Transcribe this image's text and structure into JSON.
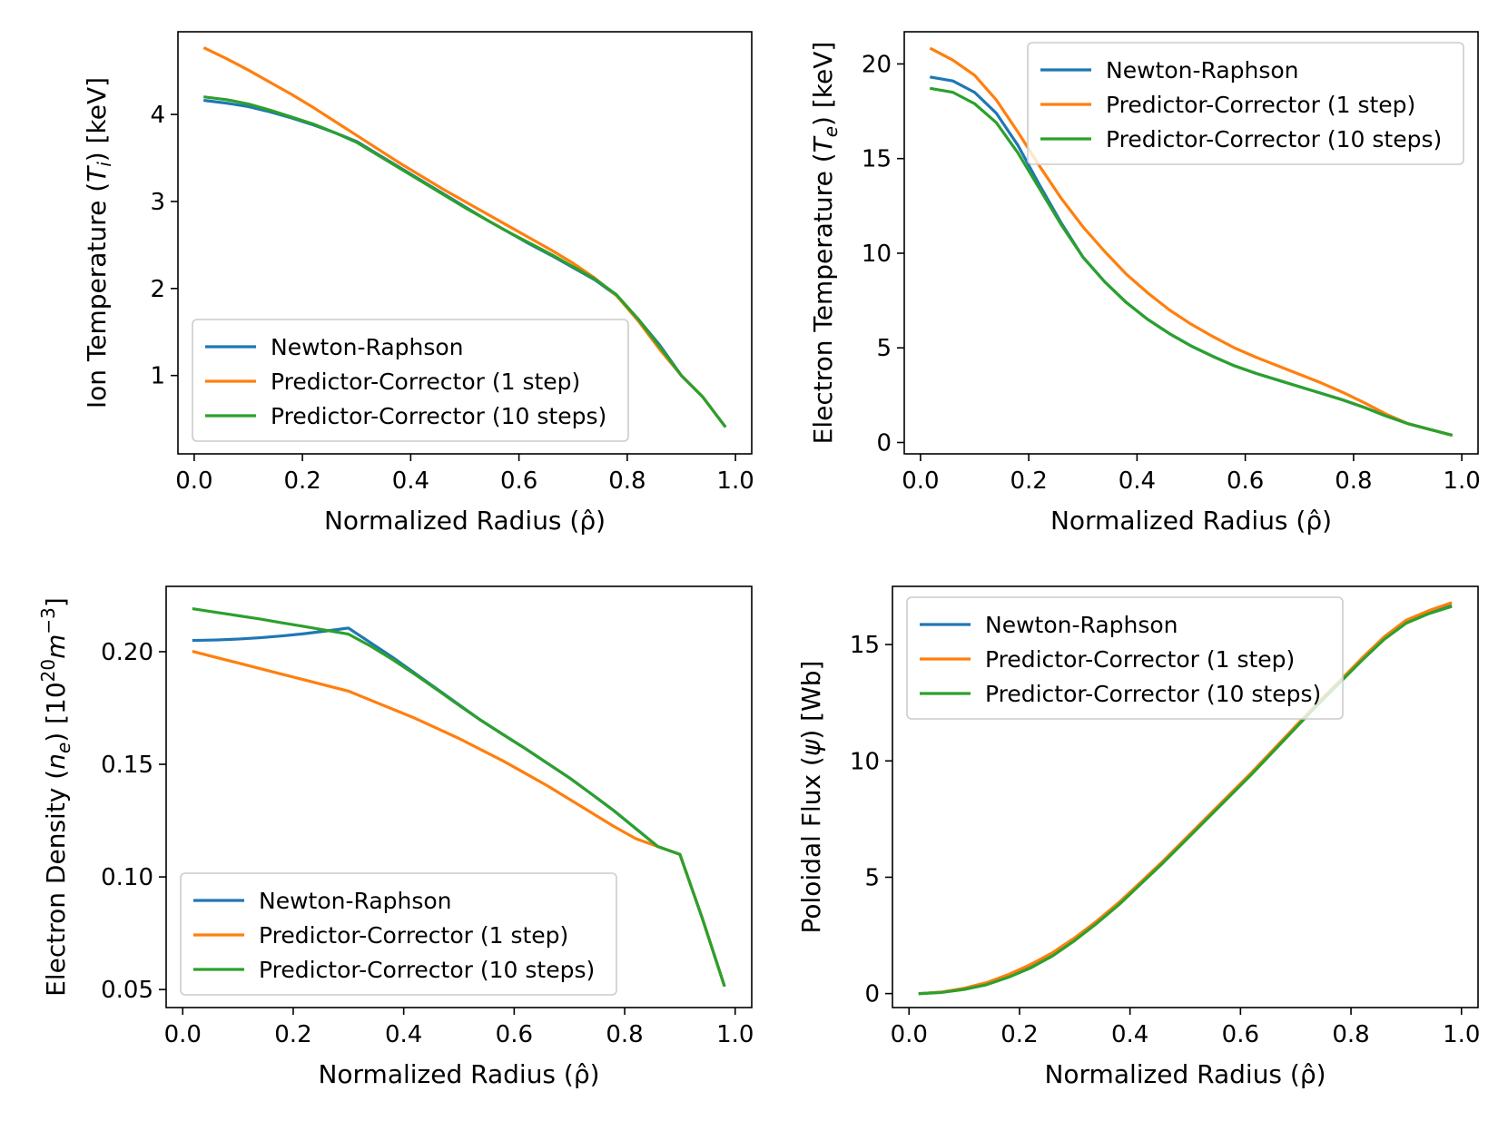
{
  "colors": {
    "newton_raphson": "#1f77b4",
    "predictor_corrector_1": "#ff7f0e",
    "predictor_corrector_10": "#2ca02c"
  },
  "chart_data": [
    {
      "type": "line",
      "title": "",
      "xlabel": "Normalized Radius (ρ̂)",
      "ylabel": "Ion Temperature (T_i) [keV]",
      "ylabel_parts": [
        "Ion Temperature (",
        "T",
        "i",
        ") [keV]"
      ],
      "xlim": [
        -0.03,
        1.03
      ],
      "ylim": [
        0.1,
        4.95
      ],
      "xticks": [
        0.0,
        0.2,
        0.4,
        0.6,
        0.8,
        1.0
      ],
      "xtick_labels": [
        "0.0",
        "0.2",
        "0.4",
        "0.6",
        "0.8",
        "1.0"
      ],
      "yticks": [
        1,
        2,
        3,
        4
      ],
      "ytick_labels": [
        "1",
        "2",
        "3",
        "4"
      ],
      "legend_position": "lower-left",
      "grid": false,
      "series": [
        {
          "name": "Newton-Raphson",
          "color_key": "newton_raphson",
          "x": [
            0.02,
            0.06,
            0.1,
            0.14,
            0.18,
            0.22,
            0.26,
            0.3,
            0.34,
            0.38,
            0.42,
            0.46,
            0.5,
            0.54,
            0.58,
            0.62,
            0.66,
            0.7,
            0.74,
            0.78,
            0.82,
            0.86,
            0.9,
            0.94,
            0.98
          ],
          "y": [
            4.16,
            4.13,
            4.09,
            4.03,
            3.96,
            3.88,
            3.79,
            3.69,
            3.54,
            3.39,
            3.24,
            3.09,
            2.94,
            2.79,
            2.65,
            2.51,
            2.38,
            2.24,
            2.1,
            1.92,
            1.65,
            1.35,
            1.0,
            0.75,
            0.42
          ]
        },
        {
          "name": "Predictor-Corrector (1 step)",
          "color_key": "predictor_corrector_1",
          "x": [
            0.02,
            0.06,
            0.1,
            0.14,
            0.18,
            0.22,
            0.26,
            0.3,
            0.34,
            0.38,
            0.42,
            0.46,
            0.5,
            0.54,
            0.58,
            0.62,
            0.66,
            0.7,
            0.74,
            0.78,
            0.82,
            0.86,
            0.9,
            0.94,
            0.98
          ],
          "y": [
            4.76,
            4.64,
            4.51,
            4.37,
            4.23,
            4.08,
            3.92,
            3.76,
            3.6,
            3.44,
            3.29,
            3.14,
            3.0,
            2.86,
            2.72,
            2.58,
            2.44,
            2.29,
            2.12,
            1.92,
            1.63,
            1.3,
            1.0,
            0.75,
            0.42
          ]
        },
        {
          "name": "Predictor-Corrector (10 steps)",
          "color_key": "predictor_corrector_10",
          "x": [
            0.02,
            0.06,
            0.1,
            0.14,
            0.18,
            0.22,
            0.26,
            0.3,
            0.34,
            0.38,
            0.42,
            0.46,
            0.5,
            0.54,
            0.58,
            0.62,
            0.66,
            0.7,
            0.74,
            0.78,
            0.82,
            0.86,
            0.9,
            0.94,
            0.98
          ],
          "y": [
            4.2,
            4.17,
            4.12,
            4.05,
            3.97,
            3.89,
            3.79,
            3.68,
            3.53,
            3.38,
            3.23,
            3.08,
            2.93,
            2.79,
            2.65,
            2.52,
            2.39,
            2.25,
            2.11,
            1.93,
            1.65,
            1.33,
            1.0,
            0.75,
            0.42
          ]
        }
      ]
    },
    {
      "type": "line",
      "title": "",
      "xlabel": "Normalized Radius (ρ̂)",
      "ylabel": "Electron Temperature (T_e) [keV]",
      "ylabel_parts": [
        "Electron Temperature (",
        "T",
        "e",
        ") [keV]"
      ],
      "xlim": [
        -0.03,
        1.03
      ],
      "ylim": [
        -0.6,
        21.7
      ],
      "xticks": [
        0.0,
        0.2,
        0.4,
        0.6,
        0.8,
        1.0
      ],
      "xtick_labels": [
        "0.0",
        "0.2",
        "0.4",
        "0.6",
        "0.8",
        "1.0"
      ],
      "yticks": [
        0,
        5,
        10,
        15,
        20
      ],
      "ytick_labels": [
        "0",
        "5",
        "10",
        "15",
        "20"
      ],
      "legend_position": "upper-right",
      "grid": false,
      "series": [
        {
          "name": "Newton-Raphson",
          "color_key": "newton_raphson",
          "x": [
            0.02,
            0.06,
            0.1,
            0.14,
            0.18,
            0.22,
            0.26,
            0.3,
            0.34,
            0.38,
            0.42,
            0.46,
            0.5,
            0.54,
            0.58,
            0.62,
            0.66,
            0.7,
            0.74,
            0.78,
            0.82,
            0.86,
            0.9,
            0.94,
            0.98
          ],
          "y": [
            19.3,
            19.1,
            18.5,
            17.4,
            15.7,
            13.6,
            11.6,
            9.8,
            8.5,
            7.4,
            6.5,
            5.75,
            5.1,
            4.55,
            4.05,
            3.65,
            3.3,
            2.95,
            2.6,
            2.25,
            1.85,
            1.4,
            1.0,
            0.7,
            0.4
          ]
        },
        {
          "name": "Predictor-Corrector (1 step)",
          "color_key": "predictor_corrector_1",
          "x": [
            0.02,
            0.06,
            0.1,
            0.14,
            0.18,
            0.22,
            0.26,
            0.3,
            0.34,
            0.38,
            0.42,
            0.46,
            0.5,
            0.54,
            0.58,
            0.62,
            0.66,
            0.7,
            0.74,
            0.78,
            0.82,
            0.86,
            0.9,
            0.94,
            0.98
          ],
          "y": [
            20.8,
            20.2,
            19.4,
            18.1,
            16.4,
            14.6,
            12.9,
            11.4,
            10.1,
            8.9,
            7.9,
            7.0,
            6.25,
            5.6,
            5.0,
            4.5,
            4.05,
            3.6,
            3.15,
            2.65,
            2.1,
            1.5,
            1.0,
            0.7,
            0.4
          ]
        },
        {
          "name": "Predictor-Corrector (10 steps)",
          "color_key": "predictor_corrector_10",
          "x": [
            0.02,
            0.06,
            0.1,
            0.14,
            0.18,
            0.22,
            0.26,
            0.3,
            0.34,
            0.38,
            0.42,
            0.46,
            0.5,
            0.54,
            0.58,
            0.62,
            0.66,
            0.7,
            0.74,
            0.78,
            0.82,
            0.86,
            0.9,
            0.94,
            0.98
          ],
          "y": [
            18.7,
            18.5,
            17.9,
            16.9,
            15.3,
            13.4,
            11.5,
            9.8,
            8.5,
            7.4,
            6.5,
            5.75,
            5.1,
            4.55,
            4.05,
            3.65,
            3.3,
            2.95,
            2.6,
            2.25,
            1.85,
            1.4,
            1.0,
            0.7,
            0.4
          ]
        }
      ]
    },
    {
      "type": "line",
      "title": "",
      "xlabel": "Normalized Radius (ρ̂)",
      "ylabel": "Electron Density (n_e) [10^20 m^-3]",
      "ylabel_parts": [
        "Electron Density (",
        "n",
        "e",
        ") [10",
        "20",
        "m",
        "−3",
        "]"
      ],
      "xlim": [
        -0.03,
        1.03
      ],
      "ylim": [
        0.042,
        0.229
      ],
      "xticks": [
        0.0,
        0.2,
        0.4,
        0.6,
        0.8,
        1.0
      ],
      "xtick_labels": [
        "0.0",
        "0.2",
        "0.4",
        "0.6",
        "0.8",
        "1.0"
      ],
      "yticks": [
        0.05,
        0.1,
        0.15,
        0.2
      ],
      "ytick_labels": [
        "0.05",
        "0.10",
        "0.15",
        "0.20"
      ],
      "legend_position": "lower-left",
      "grid": false,
      "series": [
        {
          "name": "Newton-Raphson",
          "color_key": "newton_raphson",
          "x": [
            0.02,
            0.06,
            0.1,
            0.14,
            0.18,
            0.22,
            0.26,
            0.3,
            0.34,
            0.38,
            0.42,
            0.46,
            0.5,
            0.54,
            0.58,
            0.62,
            0.66,
            0.7,
            0.74,
            0.78,
            0.82,
            0.86,
            0.9,
            0.94,
            0.98
          ],
          "y": [
            0.205,
            0.2052,
            0.2056,
            0.2062,
            0.207,
            0.208,
            0.2092,
            0.2105,
            0.204,
            0.1975,
            0.1905,
            0.1835,
            0.1765,
            0.1695,
            0.1632,
            0.157,
            0.1505,
            0.144,
            0.1368,
            0.1295,
            0.1215,
            0.1135,
            0.11,
            0.082,
            0.052
          ]
        },
        {
          "name": "Predictor-Corrector (1 step)",
          "color_key": "predictor_corrector_1",
          "x": [
            0.02,
            0.06,
            0.1,
            0.14,
            0.18,
            0.22,
            0.26,
            0.3,
            0.34,
            0.38,
            0.42,
            0.46,
            0.5,
            0.54,
            0.58,
            0.62,
            0.66,
            0.7,
            0.74,
            0.78,
            0.82,
            0.86,
            0.9,
            0.94,
            0.98
          ],
          "y": [
            0.2,
            0.1975,
            0.195,
            0.1925,
            0.19,
            0.1875,
            0.185,
            0.1825,
            0.1785,
            0.1745,
            0.1705,
            0.166,
            0.1615,
            0.1565,
            0.1515,
            0.146,
            0.1405,
            0.1345,
            0.1285,
            0.1225,
            0.117,
            0.1135,
            0.11,
            0.082,
            0.052
          ]
        },
        {
          "name": "Predictor-Corrector (10 steps)",
          "color_key": "predictor_corrector_10",
          "x": [
            0.02,
            0.06,
            0.1,
            0.14,
            0.18,
            0.22,
            0.26,
            0.3,
            0.34,
            0.38,
            0.42,
            0.46,
            0.5,
            0.54,
            0.58,
            0.62,
            0.66,
            0.7,
            0.74,
            0.78,
            0.82,
            0.86,
            0.9,
            0.94,
            0.98
          ],
          "y": [
            0.219,
            0.2175,
            0.216,
            0.2145,
            0.2128,
            0.2112,
            0.2095,
            0.2078,
            0.2025,
            0.1965,
            0.19,
            0.1832,
            0.1762,
            0.1695,
            0.1632,
            0.157,
            0.1505,
            0.144,
            0.1368,
            0.1295,
            0.1215,
            0.1135,
            0.11,
            0.082,
            0.052
          ]
        }
      ]
    },
    {
      "type": "line",
      "title": "",
      "xlabel": "Normalized Radius (ρ̂)",
      "ylabel": "Poloidal Flux (ψ) [Wb]",
      "ylabel_parts": [
        "Poloidal Flux (",
        "ψ",
        "",
        ") [Wb]"
      ],
      "xlim": [
        -0.03,
        1.03
      ],
      "ylim": [
        -0.6,
        17.5
      ],
      "xticks": [
        0.0,
        0.2,
        0.4,
        0.6,
        0.8,
        1.0
      ],
      "xtick_labels": [
        "0.0",
        "0.2",
        "0.4",
        "0.6",
        "0.8",
        "1.0"
      ],
      "yticks": [
        0,
        5,
        10,
        15
      ],
      "ytick_labels": [
        "0",
        "5",
        "10",
        "15"
      ],
      "legend_position": "upper-left",
      "grid": false,
      "series": [
        {
          "name": "Newton-Raphson",
          "color_key": "newton_raphson",
          "x": [
            0.02,
            0.06,
            0.1,
            0.14,
            0.18,
            0.22,
            0.26,
            0.3,
            0.34,
            0.38,
            0.42,
            0.46,
            0.5,
            0.54,
            0.58,
            0.62,
            0.66,
            0.7,
            0.74,
            0.78,
            0.82,
            0.86,
            0.9,
            0.94,
            0.98
          ],
          "y": [
            0.0,
            0.06,
            0.2,
            0.42,
            0.75,
            1.15,
            1.65,
            2.3,
            3.05,
            3.85,
            4.75,
            5.65,
            6.6,
            7.55,
            8.5,
            9.45,
            10.45,
            11.45,
            12.45,
            13.4,
            14.35,
            15.25,
            15.95,
            16.35,
            16.65
          ]
        },
        {
          "name": "Predictor-Corrector (1 step)",
          "color_key": "predictor_corrector_1",
          "x": [
            0.02,
            0.06,
            0.1,
            0.14,
            0.18,
            0.22,
            0.26,
            0.3,
            0.34,
            0.38,
            0.42,
            0.46,
            0.5,
            0.54,
            0.58,
            0.62,
            0.66,
            0.7,
            0.74,
            0.78,
            0.82,
            0.86,
            0.9,
            0.94,
            0.98
          ],
          "y": [
            0.0,
            0.07,
            0.23,
            0.47,
            0.82,
            1.25,
            1.76,
            2.4,
            3.12,
            3.92,
            4.8,
            5.7,
            6.65,
            7.6,
            8.55,
            9.5,
            10.5,
            11.5,
            12.5,
            13.45,
            14.42,
            15.33,
            16.05,
            16.45,
            16.78
          ]
        },
        {
          "name": "Predictor-Corrector (10 steps)",
          "color_key": "predictor_corrector_10",
          "x": [
            0.02,
            0.06,
            0.1,
            0.14,
            0.18,
            0.22,
            0.26,
            0.3,
            0.34,
            0.38,
            0.42,
            0.46,
            0.5,
            0.54,
            0.58,
            0.62,
            0.66,
            0.7,
            0.74,
            0.78,
            0.82,
            0.86,
            0.9,
            0.94,
            0.98
          ],
          "y": [
            0.0,
            0.05,
            0.18,
            0.38,
            0.7,
            1.1,
            1.62,
            2.28,
            3.02,
            3.82,
            4.72,
            5.62,
            6.57,
            7.52,
            8.47,
            9.42,
            10.42,
            11.42,
            12.42,
            13.37,
            14.32,
            15.22,
            15.92,
            16.32,
            16.62
          ]
        }
      ]
    }
  ]
}
